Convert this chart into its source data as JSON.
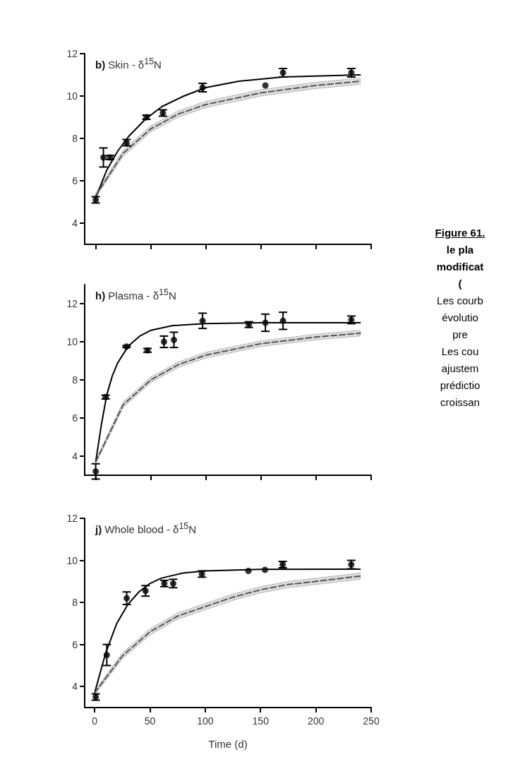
{
  "chart_data": [
    {
      "type": "scatter",
      "title": "b) Skin - δ$^{15}$N",
      "xlim": [
        -10,
        250
      ],
      "xticks": [
        0,
        50,
        100,
        150,
        200,
        250
      ],
      "ylim": [
        3,
        12
      ],
      "yticks": [
        4,
        6,
        8,
        10,
        12
      ],
      "tick_labels": "y",
      "series": [
        {
          "color": "#000000",
          "marker": "circle",
          "x": [
            0,
            7,
            13,
            28,
            46,
            61,
            97,
            154,
            170,
            232
          ],
          "values": [
            5.1,
            7.1,
            7.1,
            7.8,
            9.0,
            9.2,
            10.4,
            10.5,
            11.1,
            11.1
          ],
          "errors": [
            0.15,
            0.45,
            0.1,
            0.15,
            0.1,
            0.15,
            0.2,
            null,
            0.2,
            0.2
          ]
        },
        {
          "type": "line",
          "color": "#000000",
          "marker": "none",
          "line_style": "solid",
          "x": [
            0,
            10,
            20,
            30,
            45,
            60,
            80,
            100,
            130,
            170,
            240
          ],
          "values": [
            5.2,
            6.5,
            7.4,
            8.1,
            8.9,
            9.5,
            10.0,
            10.4,
            10.7,
            10.9,
            11.0
          ]
        },
        {
          "type": "line",
          "color": "#555555",
          "marker": "none",
          "line_style": "dashed",
          "x": [
            0,
            25,
            50,
            75,
            100,
            150,
            200,
            240
          ],
          "values": [
            5.3,
            7.3,
            8.45,
            9.15,
            9.6,
            10.15,
            10.5,
            10.7
          ],
          "lower": [
            5.2,
            7.15,
            8.3,
            9.0,
            9.45,
            10.0,
            10.35,
            10.55
          ],
          "upper": [
            5.4,
            7.45,
            8.6,
            9.3,
            9.75,
            10.3,
            10.65,
            10.85
          ]
        }
      ]
    },
    {
      "type": "scatter",
      "title": "h) Plasma - δ$^{15}$N",
      "xlim": [
        -10,
        250
      ],
      "xticks": [
        0,
        50,
        100,
        150,
        200,
        250
      ],
      "ylim": [
        3,
        13
      ],
      "yticks": [
        4,
        6,
        8,
        10,
        12
      ],
      "tick_labels": "y",
      "annotations": [
        "Figure 61.",
        "le pla",
        "modificat",
        "(",
        "Les courb",
        "évolutio",
        "pre",
        "Les cou",
        "ajustem",
        "prédictio",
        "croissan"
      ],
      "series": [
        {
          "color": "#000000",
          "marker": "circle",
          "x": [
            0,
            9,
            28,
            47,
            62,
            71,
            97,
            139,
            154,
            170,
            232
          ],
          "values": [
            3.2,
            7.1,
            9.75,
            9.55,
            10.0,
            10.1,
            11.1,
            10.9,
            11.0,
            11.1,
            11.15
          ],
          "errors": [
            0.4,
            0.1,
            0.05,
            0.1,
            0.3,
            0.4,
            0.4,
            0.15,
            0.45,
            0.45,
            0.2
          ]
        },
        {
          "type": "line",
          "color": "#000000",
          "marker": "none",
          "line_style": "solid",
          "x": [
            0,
            5,
            10,
            15,
            20,
            30,
            40,
            50,
            70,
            100,
            150,
            240
          ],
          "values": [
            3.7,
            5.6,
            7.2,
            8.2,
            8.9,
            9.8,
            10.3,
            10.6,
            10.85,
            10.95,
            11.0,
            11.0
          ]
        },
        {
          "type": "line",
          "color": "#555555",
          "marker": "none",
          "line_style": "dashed",
          "x": [
            0,
            25,
            50,
            75,
            100,
            150,
            200,
            240
          ],
          "values": [
            3.7,
            6.7,
            8.0,
            8.8,
            9.3,
            9.9,
            10.25,
            10.45
          ],
          "lower": [
            3.6,
            6.55,
            7.85,
            8.65,
            9.15,
            9.75,
            10.1,
            10.3
          ],
          "upper": [
            3.8,
            6.85,
            8.15,
            8.95,
            9.45,
            10.05,
            10.4,
            10.6
          ]
        }
      ]
    },
    {
      "type": "scatter",
      "title": "j) Whole blood - δ$^{15}$N",
      "xlabel": "Time (d)",
      "xlim": [
        -9,
        250
      ],
      "xticks": [
        0,
        50,
        100,
        150,
        200,
        250
      ],
      "ylim": [
        3,
        12
      ],
      "yticks": [
        4,
        6,
        8,
        10,
        12
      ],
      "series": [
        {
          "color": "#000000",
          "marker": "circle",
          "x": [
            1,
            11,
            29,
            46,
            63,
            71,
            97,
            139,
            154,
            170,
            232
          ],
          "values": [
            3.5,
            5.5,
            8.2,
            8.55,
            8.9,
            8.9,
            9.35,
            9.5,
            9.55,
            9.8,
            9.8
          ],
          "errors": [
            0.15,
            0.5,
            0.3,
            0.25,
            0.15,
            0.2,
            0.15,
            null,
            null,
            0.15,
            0.2
          ]
        },
        {
          "type": "line",
          "color": "#000000",
          "marker": "none",
          "line_style": "solid",
          "x": [
            0,
            10,
            20,
            30,
            40,
            50,
            60,
            80,
            100,
            150,
            240
          ],
          "values": [
            3.7,
            5.6,
            7.0,
            7.9,
            8.5,
            8.9,
            9.15,
            9.4,
            9.5,
            9.57,
            9.58
          ]
        },
        {
          "type": "line",
          "color": "#555555",
          "marker": "none",
          "line_style": "dashed",
          "x": [
            0,
            25,
            50,
            75,
            100,
            125,
            150,
            175,
            200,
            240
          ],
          "values": [
            3.7,
            5.45,
            6.6,
            7.35,
            7.8,
            8.25,
            8.6,
            8.85,
            9.0,
            9.25
          ],
          "lower": [
            3.6,
            5.3,
            6.45,
            7.2,
            7.65,
            8.1,
            8.45,
            8.7,
            8.85,
            9.1
          ],
          "upper": [
            3.8,
            5.6,
            6.75,
            7.5,
            7.95,
            8.4,
            8.75,
            9.0,
            9.15,
            9.4
          ]
        }
      ]
    }
  ]
}
